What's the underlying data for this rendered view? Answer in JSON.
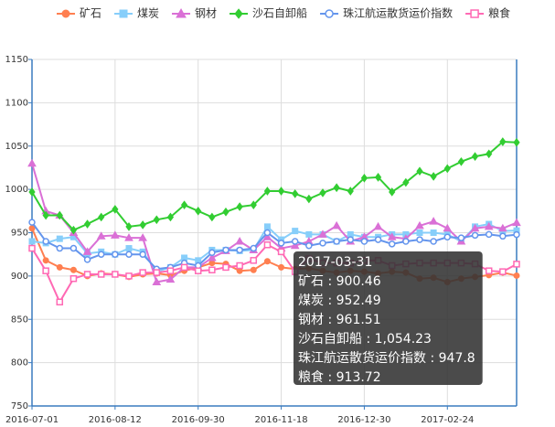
{
  "chart_data": {
    "type": "line",
    "categories": [
      "2016-07-01",
      null,
      null,
      null,
      null,
      null,
      "2016-08-12",
      null,
      null,
      null,
      null,
      null,
      "2016-09-30",
      null,
      null,
      null,
      null,
      null,
      "2016-11-18",
      null,
      null,
      null,
      null,
      null,
      "2016-12-30",
      null,
      null,
      null,
      null,
      null,
      "2017-02-24",
      null,
      null,
      null,
      null,
      "2017-03-31"
    ],
    "xlabel_interval": 6,
    "ylim": [
      750,
      1150
    ],
    "yticks": [
      750,
      800,
      850,
      900,
      950,
      1000,
      1050,
      1100,
      1150
    ],
    "grid": true,
    "legend": "top",
    "series": [
      {
        "name": "矿石",
        "color": "#ff7f50",
        "symbol": "circle",
        "values": [
          955,
          918,
          910,
          907,
          900,
          903,
          902,
          899,
          902,
          903,
          901,
          906,
          910,
          915,
          914,
          906,
          907,
          917,
          910,
          908,
          909,
          906,
          904,
          906,
          905,
          903,
          905,
          904,
          897,
          898,
          893,
          897,
          899,
          901,
          904,
          900.46
        ]
      },
      {
        "name": "煤炭",
        "color": "#87cefa",
        "symbol": "rect",
        "values": [
          940,
          938,
          943,
          945,
          926,
          928,
          925,
          932,
          928,
          905,
          910,
          921,
          918,
          930,
          930,
          929,
          930,
          957,
          942,
          952,
          948,
          948,
          940,
          948,
          945,
          945,
          948,
          948,
          950,
          950,
          948,
          940,
          957,
          960,
          952,
          952.49
        ]
      },
      {
        "name": "钢材",
        "color": "#da70d6",
        "symbol": "triangle",
        "values": [
          1030,
          975,
          970,
          950,
          928,
          946,
          947,
          944,
          944,
          893,
          896,
          910,
          910,
          921,
          929,
          940,
          930,
          945,
          932,
          935,
          940,
          948,
          958,
          940,
          945,
          957,
          945,
          943,
          958,
          963,
          955,
          940,
          955,
          957,
          955,
          961.51
        ]
      },
      {
        "name": "沙石自卸船",
        "color": "#32cd32",
        "symbol": "diamond",
        "values": [
          997,
          970,
          970,
          953,
          960,
          968,
          977,
          957,
          959,
          965,
          968,
          982,
          975,
          968,
          974,
          980,
          982,
          998,
          998,
          995,
          989,
          996,
          1002,
          998,
          1013,
          1014,
          997,
          1008,
          1021,
          1015,
          1024,
          1032,
          1038,
          1041,
          1055,
          1054.23
        ],
        "value_labels": [
          null,
          null,
          null,
          null,
          null,
          null,
          null,
          null,
          null,
          null,
          null,
          null,
          null,
          null,
          null,
          null,
          null,
          null,
          null,
          null,
          null,
          null,
          null,
          null,
          null,
          null,
          null,
          null,
          null,
          null,
          null,
          null,
          null,
          null,
          null,
          "1,054.23"
        ]
      },
      {
        "name": "珠江航运散货运价指数",
        "color": "#6495ed",
        "symbol": "emptyCircle",
        "values": [
          962,
          940,
          932,
          932,
          919,
          925,
          925,
          925,
          925,
          908,
          910,
          915,
          912,
          927,
          930,
          930,
          932,
          950,
          938,
          940,
          935,
          938,
          940,
          942,
          940,
          942,
          937,
          940,
          942,
          940,
          945,
          944,
          947,
          948,
          946,
          947.8
        ]
      },
      {
        "name": "粮食",
        "color": "#ff69b4",
        "symbol": "emptyRect",
        "values": [
          932,
          906,
          870,
          897,
          902,
          902,
          902,
          900,
          904,
          904,
          906,
          910,
          906,
          907,
          910,
          912,
          918,
          936,
          928,
          905,
          920,
          915,
          915,
          915,
          918,
          918,
          912,
          914,
          915,
          915,
          915,
          915,
          914,
          906,
          905,
          913.72
        ]
      }
    ],
    "tooltip": {
      "separator": " : "
    }
  }
}
